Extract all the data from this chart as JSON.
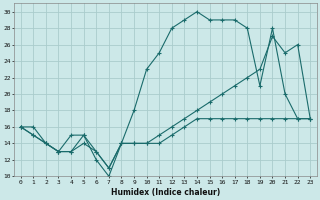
{
  "title": "",
  "xlabel": "Humidex (Indice chaleur)",
  "bg_color": "#cce8e8",
  "grid_color": "#aacccc",
  "line_color": "#1a6b6b",
  "xlim": [
    -0.5,
    23.5
  ],
  "ylim": [
    10,
    31
  ],
  "xticks": [
    0,
    1,
    2,
    3,
    4,
    5,
    6,
    7,
    8,
    9,
    10,
    11,
    12,
    13,
    14,
    15,
    16,
    17,
    18,
    19,
    20,
    21,
    22,
    23
  ],
  "yticks": [
    10,
    12,
    14,
    16,
    18,
    20,
    22,
    24,
    26,
    28,
    30
  ],
  "line1_x": [
    0,
    1,
    2,
    3,
    4,
    5,
    6,
    7,
    8,
    9,
    10,
    11,
    12,
    13,
    14,
    15,
    16,
    17,
    18,
    19,
    20,
    21,
    22,
    23
  ],
  "line1_y": [
    16,
    15,
    14,
    13,
    13,
    15,
    12,
    10,
    14,
    18,
    23,
    25,
    28,
    29,
    30,
    29,
    29,
    29,
    28,
    21,
    28,
    20,
    17,
    17
  ],
  "line2_x": [
    0,
    1,
    2,
    3,
    4,
    5,
    6,
    7,
    8,
    9,
    10,
    11,
    12,
    13,
    14,
    15,
    16,
    17,
    18,
    19,
    20,
    21,
    22,
    23
  ],
  "line2_y": [
    16,
    15,
    14,
    13,
    15,
    15,
    13,
    11,
    14,
    14,
    14,
    15,
    16,
    17,
    18,
    19,
    20,
    21,
    22,
    23,
    27,
    25,
    26,
    17
  ],
  "line3_x": [
    0,
    1,
    2,
    3,
    4,
    5,
    6,
    7,
    8,
    9,
    10,
    11,
    12,
    13,
    14,
    15,
    16,
    17,
    18,
    19,
    20,
    21,
    22,
    23
  ],
  "line3_y": [
    16,
    16,
    14,
    13,
    13,
    14,
    13,
    11,
    14,
    14,
    14,
    14,
    15,
    16,
    17,
    17,
    17,
    17,
    17,
    17,
    17,
    17,
    17,
    17
  ]
}
